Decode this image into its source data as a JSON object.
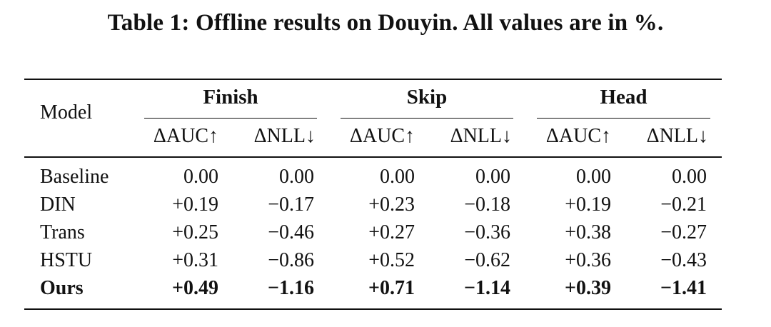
{
  "caption": "Table 1: Offline results on Douyin. All values are in %.",
  "header": {
    "model": "Model",
    "groups": [
      "Finish",
      "Skip",
      "Head"
    ],
    "metrics": [
      "ΔAUC↑",
      "ΔNLL↓",
      "ΔAUC↑",
      "ΔNLL↓",
      "ΔAUC↑",
      "ΔNLL↓"
    ]
  },
  "rows": [
    {
      "model": "Baseline",
      "values": [
        "0.00",
        "0.00",
        "0.00",
        "0.00",
        "0.00",
        "0.00"
      ]
    },
    {
      "model": "DIN",
      "values": [
        "+0.19",
        "−0.17",
        "+0.23",
        "−0.18",
        "+0.19",
        "−0.21"
      ]
    },
    {
      "model": "Trans",
      "values": [
        "+0.25",
        "−0.46",
        "+0.27",
        "−0.36",
        "+0.38",
        "−0.27"
      ]
    },
    {
      "model": "HSTU",
      "values": [
        "+0.31",
        "−0.86",
        "+0.52",
        "−0.62",
        "+0.36",
        "−0.43"
      ]
    },
    {
      "model": "Ours",
      "values": [
        "+0.49",
        "−1.16",
        "+0.71",
        "−1.14",
        "+0.39",
        "−1.41"
      ]
    }
  ],
  "chart_data": {
    "type": "table",
    "title": "Table 1: Offline results on Douyin. All values are in %.",
    "columns": [
      "Model",
      "Finish ΔAUC↑",
      "Finish ΔNLL↓",
      "Skip ΔAUC↑",
      "Skip ΔNLL↓",
      "Head ΔAUC↑",
      "Head ΔNLL↓"
    ],
    "rows": [
      [
        "Baseline",
        0.0,
        0.0,
        0.0,
        0.0,
        0.0,
        0.0
      ],
      [
        "DIN",
        0.19,
        -0.17,
        0.23,
        -0.18,
        0.19,
        -0.21
      ],
      [
        "Trans",
        0.25,
        -0.46,
        0.27,
        -0.36,
        0.38,
        -0.27
      ],
      [
        "HSTU",
        0.31,
        -0.86,
        0.52,
        -0.62,
        0.36,
        -0.43
      ],
      [
        "Ours",
        0.49,
        -1.16,
        0.71,
        -1.14,
        0.39,
        -1.41
      ]
    ]
  }
}
